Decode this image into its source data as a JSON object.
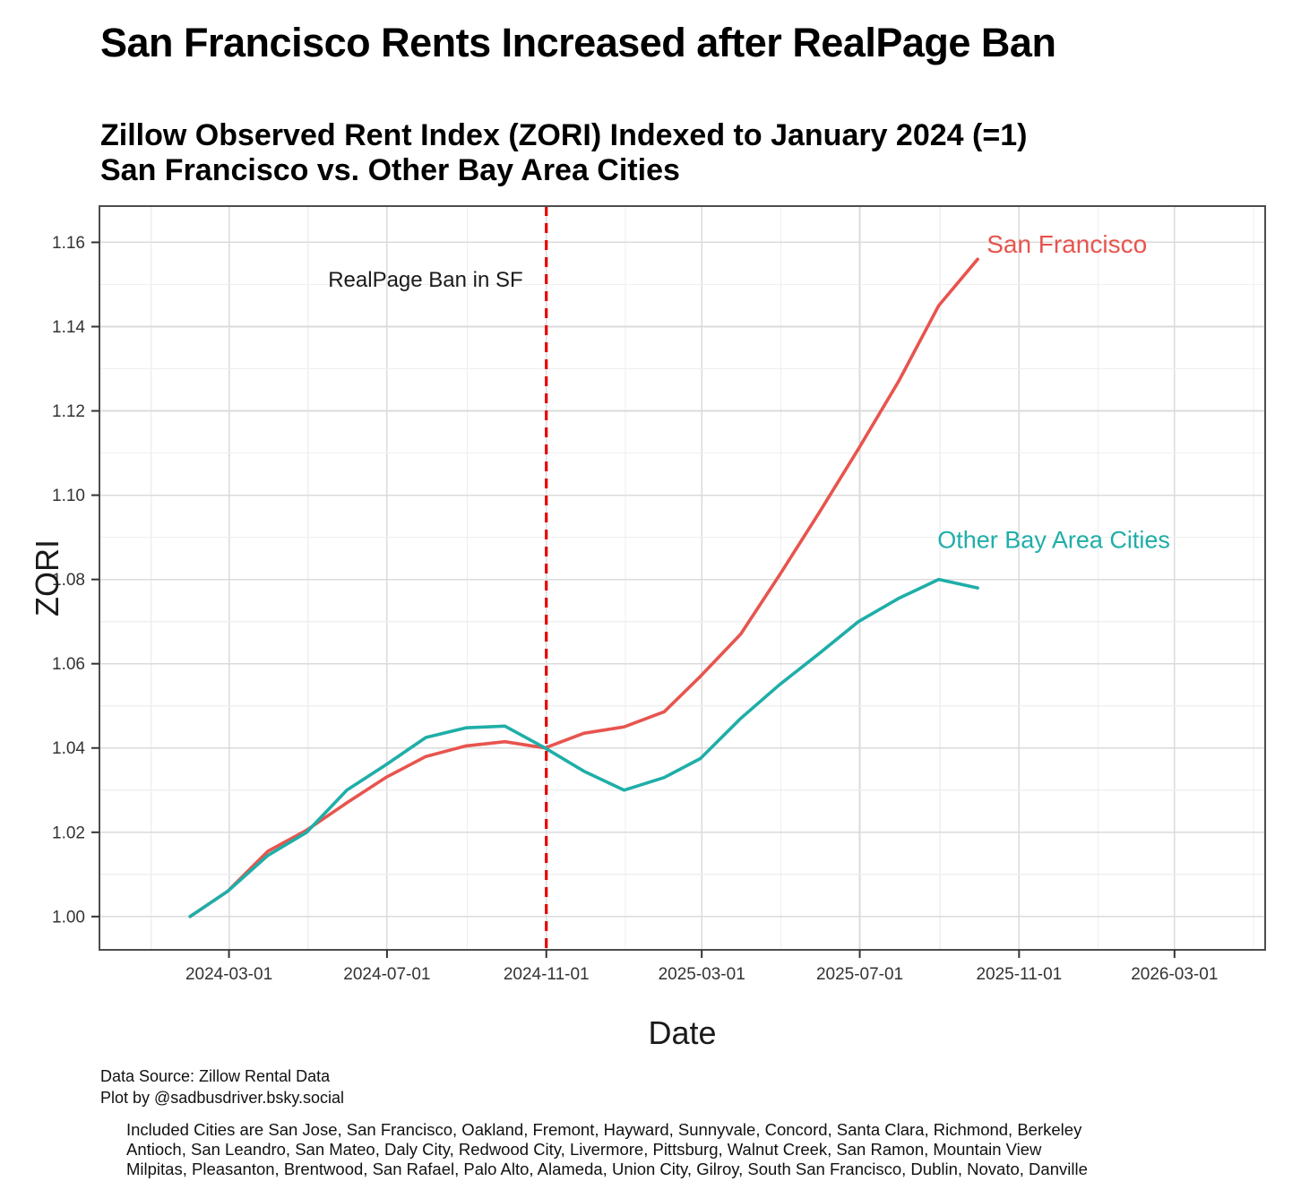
{
  "title": "San Francisco Rents Increased after RealPage Ban",
  "subtitle": {
    "line1": "Zillow Observed Rent Index (ZORI) Indexed to January 2024 (=1)",
    "line2": "San Francisco vs. Other Bay Area Cities"
  },
  "footer": {
    "source_line1": "Data Source: Zillow Rental Data",
    "source_line2": "Plot by @sadbusdriver.bsky.social",
    "included_cities_lines": [
      "Included Cities are San Jose, San Francisco, Oakland, Fremont, Hayward, Sunnyvale, Concord, Santa Clara, Richmond, Berkeley",
      "Antioch, San Leandro, San Mateo, Daly City, Redwood City, Livermore, Pittsburg, Walnut Creek, San Ramon, Mountain View",
      "Milpitas, Pleasanton, Brentwood, San Rafael, Palo Alto, Alameda, Union City, Gilroy, South San Francisco, Dublin, Novato, Danville"
    ]
  },
  "chart_data": {
    "type": "line",
    "title": "Zillow Observed Rent Index (ZORI) Indexed to January 2024 (=1), San Francisco vs. Other Bay Area Cities",
    "xlabel": "Date",
    "ylabel": "ZORI",
    "x_axis": {
      "domain": [
        "2023-11-22",
        "2026-05-10"
      ],
      "ticks": [
        "2024-03-01",
        "2024-07-01",
        "2024-11-01",
        "2025-03-01",
        "2025-07-01",
        "2025-11-01",
        "2026-03-01"
      ],
      "gridline_step_months": 2,
      "gridline_start": "2024-01-01",
      "gridline_end": "2026-05-01"
    },
    "y_axis": {
      "domain": [
        0.9921,
        1.1686
      ],
      "ticks": [
        1.0,
        1.02,
        1.04,
        1.06,
        1.08,
        1.1,
        1.12,
        1.14,
        1.16
      ],
      "minor_step": 0.01,
      "tick_decimals": 2
    },
    "grid": {
      "major_color": "#DBDBDB",
      "minor_color": "#EFEFEF",
      "background": "#FFFFFF",
      "panel_border_color": "#4D4D4D"
    },
    "categories": [
      "2024-01-31",
      "2024-02-29",
      "2024-03-31",
      "2024-04-30",
      "2024-05-31",
      "2024-06-30",
      "2024-07-31",
      "2024-08-31",
      "2024-09-30",
      "2024-10-31",
      "2024-11-30",
      "2024-12-31",
      "2025-01-31",
      "2025-02-28",
      "2025-03-31",
      "2025-04-30",
      "2025-05-31",
      "2025-06-30",
      "2025-07-31",
      "2025-08-31",
      "2025-09-30"
    ],
    "series": [
      {
        "name": "San Francisco",
        "color": "#E8544E",
        "values": [
          1.0,
          1.006,
          1.0155,
          1.0205,
          1.027,
          1.033,
          1.038,
          1.0405,
          1.0415,
          1.04,
          1.0435,
          1.045,
          1.0486,
          1.057,
          1.067,
          1.081,
          1.096,
          1.111,
          1.127,
          1.145,
          1.156
        ]
      },
      {
        "name": "Other Bay Area Cities",
        "color": "#1FAEA8",
        "values": [
          1.0,
          1.006,
          1.0145,
          1.02,
          1.03,
          1.036,
          1.0425,
          1.0448,
          1.0452,
          1.04,
          1.0345,
          1.03,
          1.033,
          1.0375,
          1.047,
          1.055,
          1.0625,
          1.07,
          1.0755,
          1.08,
          1.078
        ]
      }
    ],
    "event_line": {
      "date": "2024-11-01",
      "label": "RealPage Ban in SF",
      "color": "#E60000",
      "style": "dashed"
    },
    "annotations": [
      {
        "text": "RealPage Ban in SF",
        "date": "2024-10-14",
        "value": 1.1495,
        "anchor": "end",
        "color": "#1A1A1A",
        "font_size": 24,
        "bold": false
      },
      {
        "text": "San Francisco",
        "date": "2025-10-07",
        "value": 1.1575,
        "anchor": "start",
        "color": "#E8544E",
        "font_size": 28,
        "bold": false
      },
      {
        "text": "Other Bay Area Cities",
        "date": "2025-08-30",
        "value": 1.0875,
        "anchor": "start",
        "color": "#1FAEA8",
        "font_size": 27,
        "bold": false
      }
    ],
    "legend": {
      "visible": false,
      "note": "series identified by direct line labels"
    },
    "axis_text_color": "#333333",
    "axis_title_color": "#1A1A1A"
  }
}
